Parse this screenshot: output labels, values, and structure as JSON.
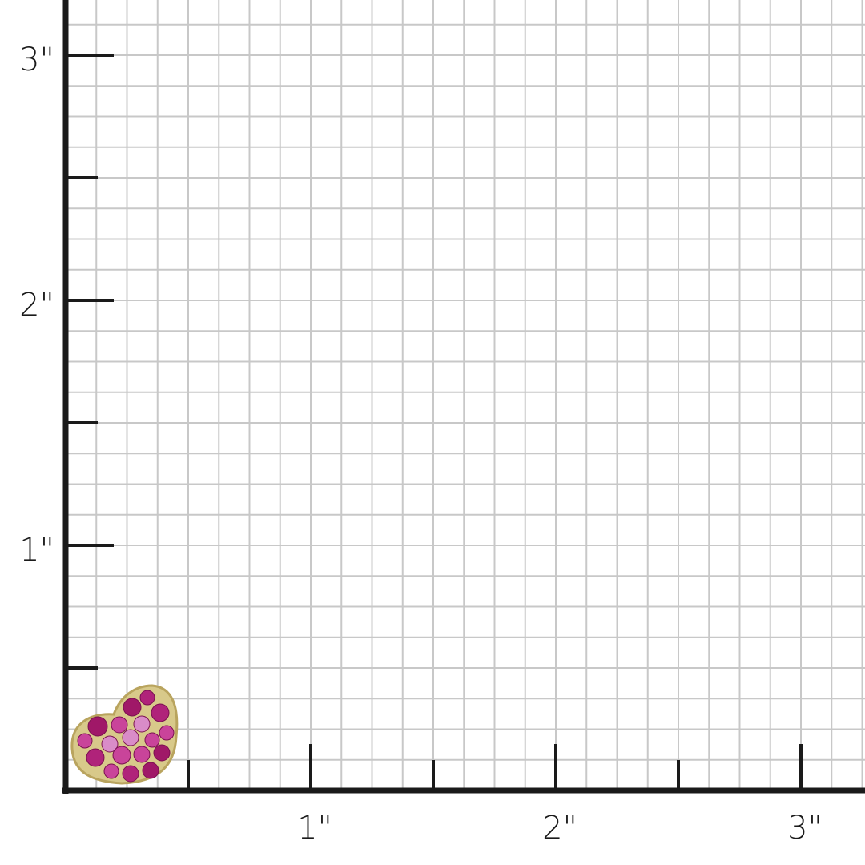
{
  "ruler": {
    "unit_symbol": "\"",
    "x_labels": [
      "1\"",
      "2\"",
      "3\""
    ],
    "y_labels": [
      "1\"",
      "2\"",
      "3\""
    ],
    "subdivisions_per_inch": 8,
    "axis_color": "#1a1a1a",
    "grid_color": "#c8c8c8"
  },
  "product": {
    "metal_color": "#d8c98a",
    "stone_colors": [
      "#b0237a",
      "#c9449a",
      "#d98cc8",
      "#a01868"
    ]
  }
}
